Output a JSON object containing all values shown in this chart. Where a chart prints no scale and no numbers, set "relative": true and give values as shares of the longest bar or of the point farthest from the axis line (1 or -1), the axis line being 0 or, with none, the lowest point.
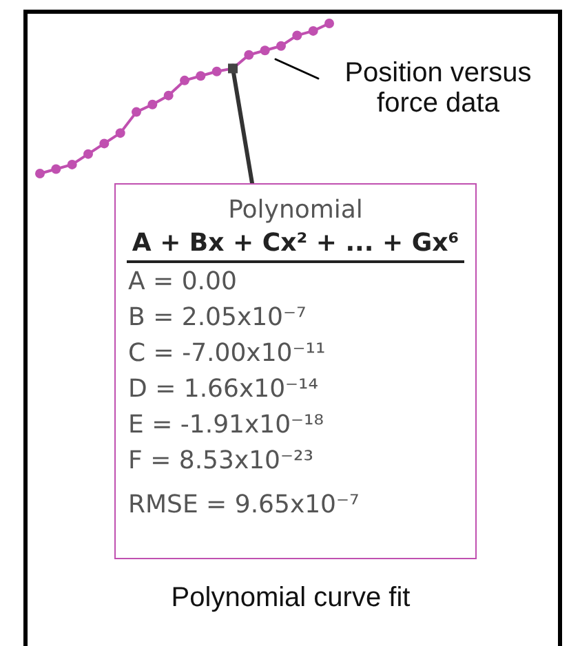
{
  "chart_data": {
    "type": "line",
    "relative": true,
    "marker": "circle",
    "categories": [
      null,
      null,
      null,
      null,
      null,
      null,
      null,
      null,
      null,
      null,
      null,
      null,
      null,
      null,
      null,
      null,
      null,
      null,
      null
    ],
    "series": [
      {
        "color": "#c050b0",
        "values": [
          0,
          0.03,
          0.06,
          0.13,
          0.2,
          0.27,
          0.41,
          0.46,
          0.52,
          0.62,
          0.65,
          0.68,
          0.7,
          0.79,
          0.82,
          0.85,
          0.92,
          0.95,
          1
        ]
      }
    ],
    "annotations": [
      "Position versus force data",
      "Polynomial",
      "A + Bx + Cx² + ... + Gx⁶",
      "A = 0.00",
      "B = 2.05x10⁻⁷",
      "C = -7.00x10⁻¹¹",
      "D = 1.66x10⁻¹⁴",
      "E = -1.91x10⁻¹⁸",
      "F = 8.53x10⁻²³",
      "RMSE = 9.65x10⁻⁷",
      "Polynomial curve fit"
    ]
  }
}
